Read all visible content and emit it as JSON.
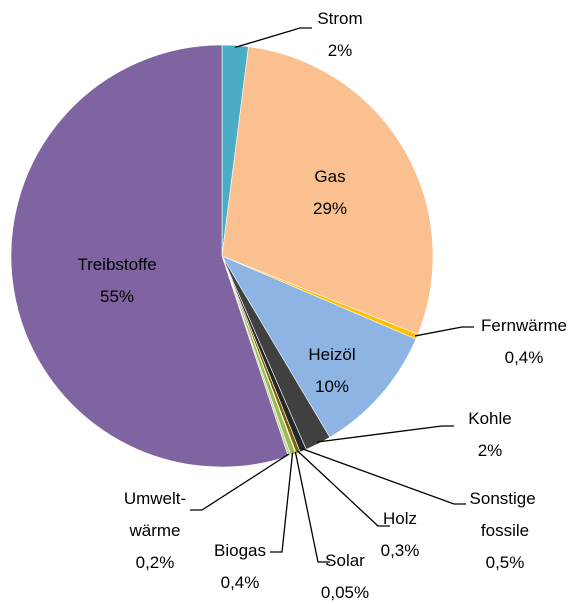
{
  "chart_data": {
    "type": "pie",
    "categories": [
      "Strom",
      "Gas",
      "Fernwärme",
      "Heizöl",
      "Kohle",
      "Sonstige fossile",
      "Holz",
      "Solar",
      "Biogas",
      "Umwelt-wärme",
      "Treibstoffe"
    ],
    "values": [
      2,
      29,
      0.4,
      10,
      2,
      0.5,
      0.3,
      0.05,
      0.4,
      0.2,
      55
    ],
    "value_labels": [
      "2%",
      "29%",
      "0,4%",
      "10%",
      "2%",
      "0,5%",
      "0,3%",
      "0,05%",
      "0,4%",
      "0,2%",
      "55%"
    ],
    "colors": [
      "#4bacc6",
      "#fac090",
      "#ffc000",
      "#8eb4e3",
      "#404040",
      "#262626",
      "#7f6000",
      "#ffff00",
      "#9bbb59",
      "#c3d69b",
      "#8064a2"
    ]
  }
}
